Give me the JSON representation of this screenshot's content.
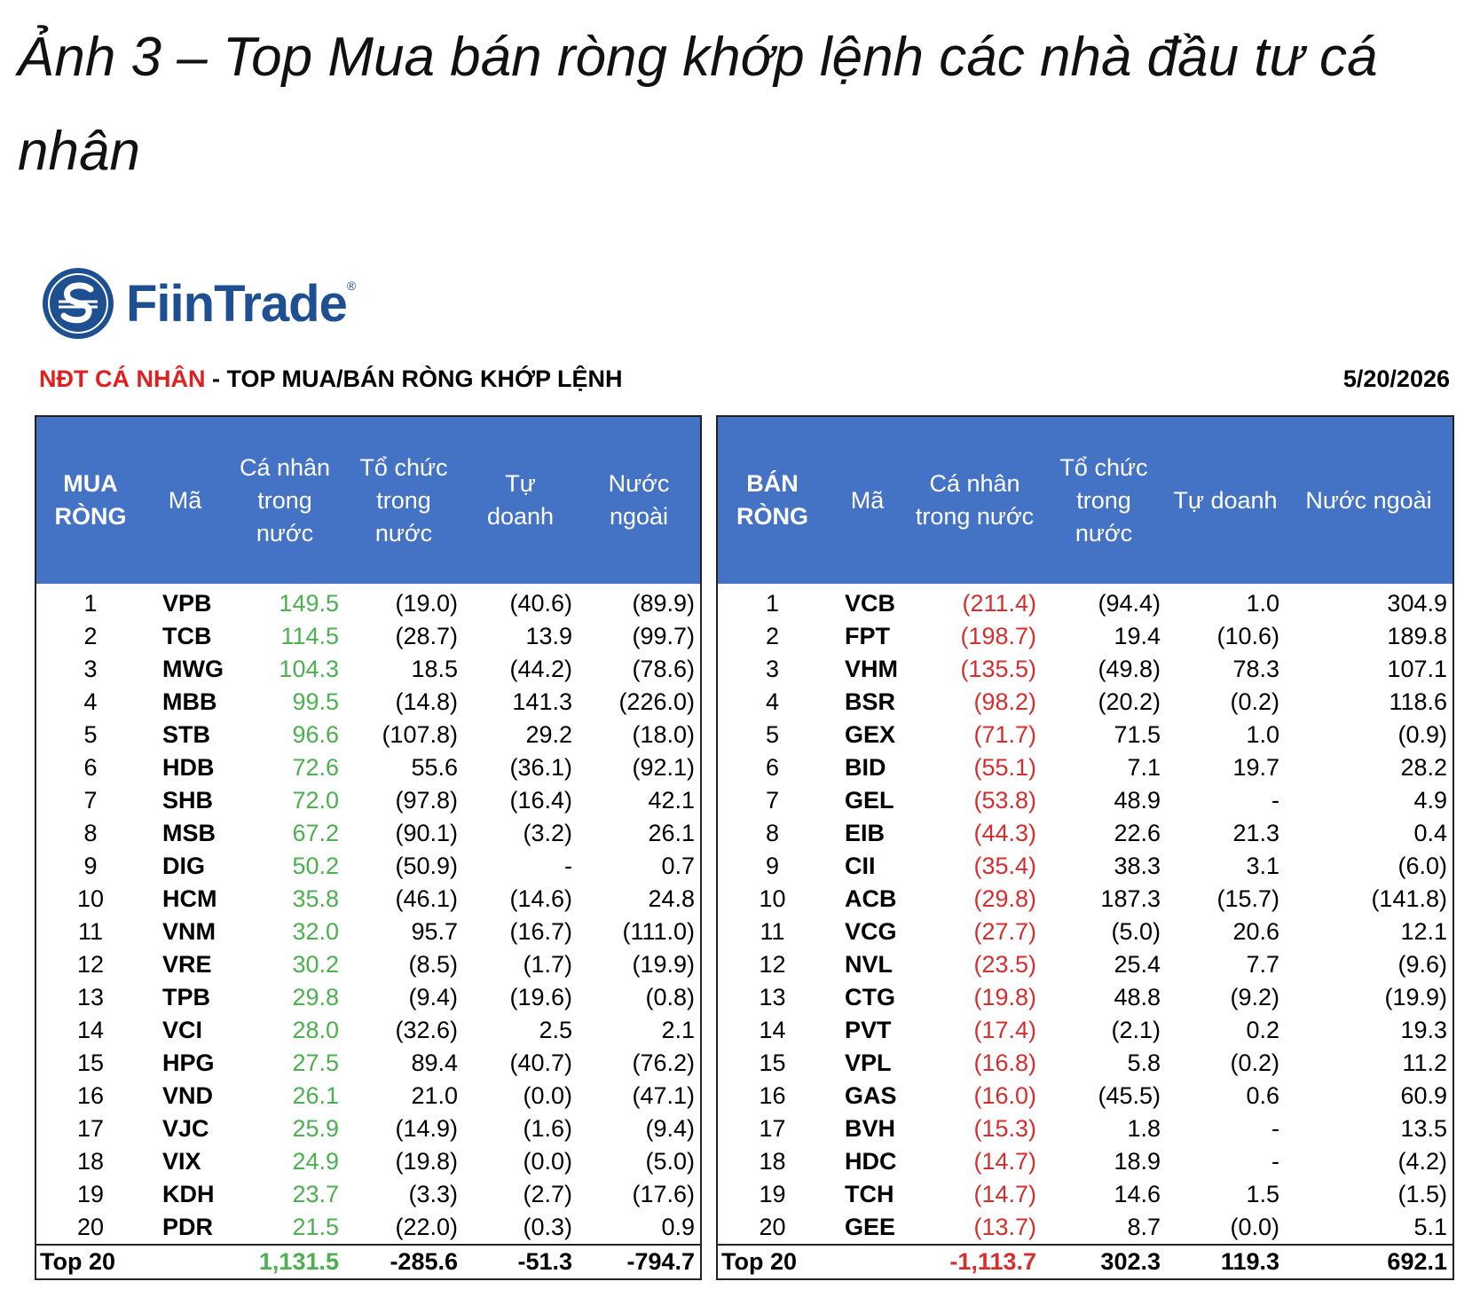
{
  "title": "Ảnh 3 – Top Mua bán ròng khớp lệnh các nhà đầu tư cá nhân",
  "logo": {
    "text": "FiinTrade",
    "mark": "®"
  },
  "subheader": {
    "highlight": "NĐT CÁ NHÂN",
    "text": " - TOP MUA/BÁN RÒNG KHỚP LỆNH",
    "date": "5/20/2026"
  },
  "buy": {
    "headers": [
      "MUA RÒNG",
      "Mã",
      "Cá nhân trong nước",
      "Tổ chức trong nước",
      "Tự doanh",
      "Nước ngoài"
    ],
    "rows": [
      [
        "1",
        "VPB",
        "149.5",
        "(19.0)",
        "(40.6)",
        "(89.9)"
      ],
      [
        "2",
        "TCB",
        "114.5",
        "(28.7)",
        "13.9",
        "(99.7)"
      ],
      [
        "3",
        "MWG",
        "104.3",
        "18.5",
        "(44.2)",
        "(78.6)"
      ],
      [
        "4",
        "MBB",
        "99.5",
        "(14.8)",
        "141.3",
        "(226.0)"
      ],
      [
        "5",
        "STB",
        "96.6",
        "(107.8)",
        "29.2",
        "(18.0)"
      ],
      [
        "6",
        "HDB",
        "72.6",
        "55.6",
        "(36.1)",
        "(92.1)"
      ],
      [
        "7",
        "SHB",
        "72.0",
        "(97.8)",
        "(16.4)",
        "42.1"
      ],
      [
        "8",
        "MSB",
        "67.2",
        "(90.1)",
        "(3.2)",
        "26.1"
      ],
      [
        "9",
        "DIG",
        "50.2",
        "(50.9)",
        "-",
        "0.7"
      ],
      [
        "10",
        "HCM",
        "35.8",
        "(46.1)",
        "(14.6)",
        "24.8"
      ],
      [
        "11",
        "VNM",
        "32.0",
        "95.7",
        "(16.7)",
        "(111.0)"
      ],
      [
        "12",
        "VRE",
        "30.2",
        "(8.5)",
        "(1.7)",
        "(19.9)"
      ],
      [
        "13",
        "TPB",
        "29.8",
        "(9.4)",
        "(19.6)",
        "(0.8)"
      ],
      [
        "14",
        "VCI",
        "28.0",
        "(32.6)",
        "2.5",
        "2.1"
      ],
      [
        "15",
        "HPG",
        "27.5",
        "89.4",
        "(40.7)",
        "(76.2)"
      ],
      [
        "16",
        "VND",
        "26.1",
        "21.0",
        "(0.0)",
        "(47.1)"
      ],
      [
        "17",
        "VJC",
        "25.9",
        "(14.9)",
        "(1.6)",
        "(9.4)"
      ],
      [
        "18",
        "VIX",
        "24.9",
        "(19.8)",
        "(0.0)",
        "(5.0)"
      ],
      [
        "19",
        "KDH",
        "23.7",
        "(3.3)",
        "(2.7)",
        "(17.6)"
      ],
      [
        "20",
        "PDR",
        "21.5",
        "(22.0)",
        "(0.3)",
        "0.9"
      ]
    ],
    "total": [
      "Top 20",
      "1,131.5",
      "-285.6",
      "-51.3",
      "-794.7"
    ]
  },
  "sell": {
    "headers": [
      "BÁN RÒNG",
      "Mã",
      "Cá nhân trong nước",
      "Tổ chức trong nước",
      "Tự doanh",
      "Nước ngoài"
    ],
    "rows": [
      [
        "1",
        "VCB",
        "(211.4)",
        "(94.4)",
        "1.0",
        "304.9"
      ],
      [
        "2",
        "FPT",
        "(198.7)",
        "19.4",
        "(10.6)",
        "189.8"
      ],
      [
        "3",
        "VHM",
        "(135.5)",
        "(49.8)",
        "78.3",
        "107.1"
      ],
      [
        "4",
        "BSR",
        "(98.2)",
        "(20.2)",
        "(0.2)",
        "118.6"
      ],
      [
        "5",
        "GEX",
        "(71.7)",
        "71.5",
        "1.0",
        "(0.9)"
      ],
      [
        "6",
        "BID",
        "(55.1)",
        "7.1",
        "19.7",
        "28.2"
      ],
      [
        "7",
        "GEL",
        "(53.8)",
        "48.9",
        "-",
        "4.9"
      ],
      [
        "8",
        "EIB",
        "(44.3)",
        "22.6",
        "21.3",
        "0.4"
      ],
      [
        "9",
        "CII",
        "(35.4)",
        "38.3",
        "3.1",
        "(6.0)"
      ],
      [
        "10",
        "ACB",
        "(29.8)",
        "187.3",
        "(15.7)",
        "(141.8)"
      ],
      [
        "11",
        "VCG",
        "(27.7)",
        "(5.0)",
        "20.6",
        "12.1"
      ],
      [
        "12",
        "NVL",
        "(23.5)",
        "25.4",
        "7.7",
        "(9.6)"
      ],
      [
        "13",
        "CTG",
        "(19.8)",
        "48.8",
        "(9.2)",
        "(19.9)"
      ],
      [
        "14",
        "PVT",
        "(17.4)",
        "(2.1)",
        "0.2",
        "19.3"
      ],
      [
        "15",
        "VPL",
        "(16.8)",
        "5.8",
        "(0.2)",
        "11.2"
      ],
      [
        "16",
        "GAS",
        "(16.0)",
        "(45.5)",
        "0.6",
        "60.9"
      ],
      [
        "17",
        "BVH",
        "(15.3)",
        "1.8",
        "-",
        "13.5"
      ],
      [
        "18",
        "HDC",
        "(14.7)",
        "18.9",
        "-",
        "(4.2)"
      ],
      [
        "19",
        "TCH",
        "(14.7)",
        "14.6",
        "1.5",
        "(1.5)"
      ],
      [
        "20",
        "GEE",
        "(13.7)",
        "8.7",
        "(0.0)",
        "5.1"
      ]
    ],
    "total": [
      "Top 20",
      "-1,113.7",
      "302.3",
      "119.3",
      "692.1"
    ]
  }
}
